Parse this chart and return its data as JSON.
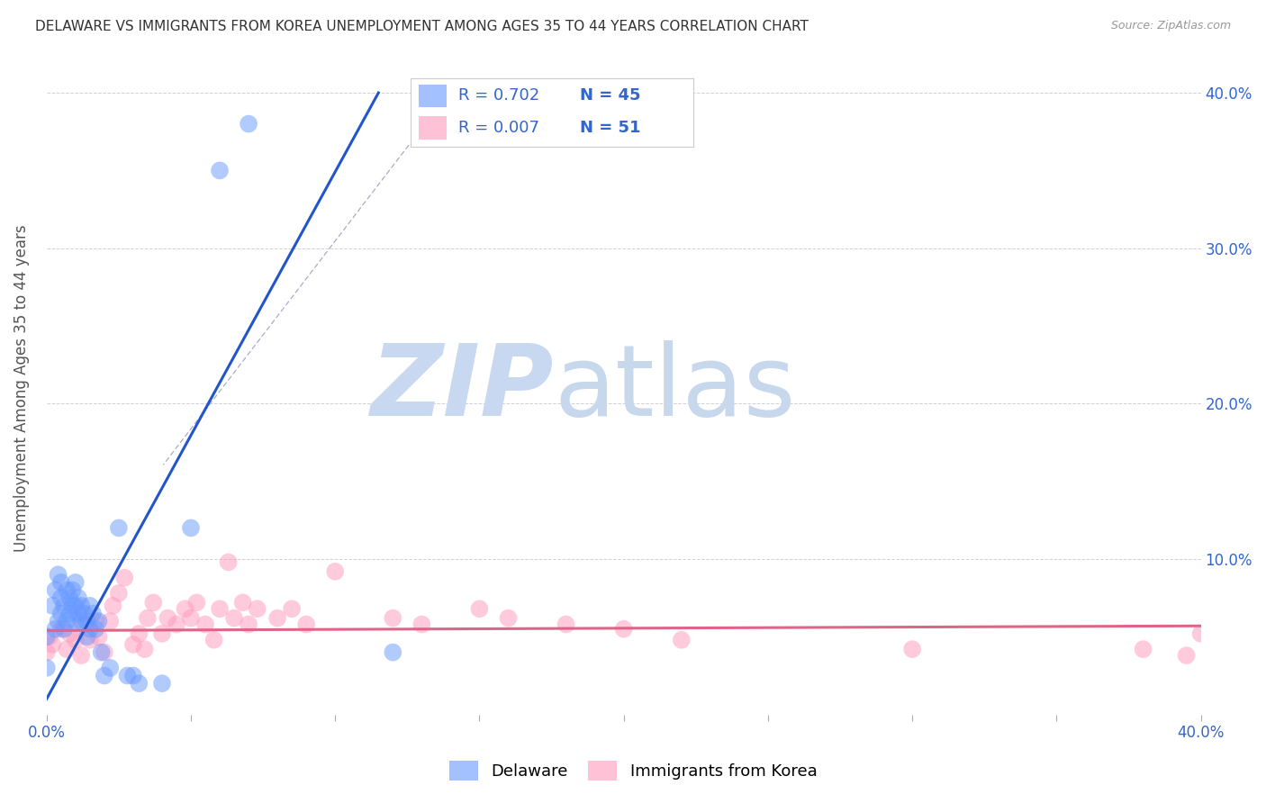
{
  "title": "DELAWARE VS IMMIGRANTS FROM KOREA UNEMPLOYMENT AMONG AGES 35 TO 44 YEARS CORRELATION CHART",
  "source": "Source: ZipAtlas.com",
  "ylabel": "Unemployment Among Ages 35 to 44 years",
  "xlim": [
    0.0,
    0.4
  ],
  "ylim": [
    0.0,
    0.42
  ],
  "xticks": [
    0.0,
    0.05,
    0.1,
    0.15,
    0.2,
    0.25,
    0.3,
    0.35,
    0.4
  ],
  "yticks": [
    0.0,
    0.1,
    0.2,
    0.3,
    0.4
  ],
  "xtick_labels": [
    "0.0%",
    "",
    "",
    "",
    "",
    "",
    "",
    "",
    "40.0%"
  ],
  "ytick_labels": [
    "",
    "10.0%",
    "20.0%",
    "30.0%",
    "40.0%"
  ],
  "legend_R_blue": "R = 0.702",
  "legend_N_blue": "N = 45",
  "legend_R_pink": "R = 0.007",
  "legend_N_pink": "N = 51",
  "legend_label_blue": "Delaware",
  "legend_label_pink": "Immigrants from Korea",
  "blue_color": "#6699ff",
  "pink_color": "#ff99bb",
  "line_blue_color": "#2255cc",
  "line_pink_color": "#dd6688",
  "text_color": "#3366cc",
  "blue_scatter_x": [
    0.0,
    0.0,
    0.002,
    0.003,
    0.003,
    0.004,
    0.004,
    0.005,
    0.005,
    0.005,
    0.006,
    0.006,
    0.007,
    0.007,
    0.008,
    0.008,
    0.009,
    0.009,
    0.01,
    0.01,
    0.01,
    0.011,
    0.011,
    0.012,
    0.012,
    0.013,
    0.014,
    0.014,
    0.015,
    0.015,
    0.016,
    0.017,
    0.018,
    0.019,
    0.02,
    0.022,
    0.025,
    0.028,
    0.03,
    0.032,
    0.04,
    0.05,
    0.06,
    0.07,
    0.12
  ],
  "blue_scatter_y": [
    0.05,
    0.03,
    0.07,
    0.055,
    0.08,
    0.06,
    0.09,
    0.065,
    0.075,
    0.085,
    0.055,
    0.07,
    0.06,
    0.08,
    0.065,
    0.075,
    0.07,
    0.08,
    0.06,
    0.07,
    0.085,
    0.065,
    0.075,
    0.06,
    0.07,
    0.065,
    0.05,
    0.06,
    0.055,
    0.07,
    0.065,
    0.055,
    0.06,
    0.04,
    0.025,
    0.03,
    0.12,
    0.025,
    0.025,
    0.02,
    0.02,
    0.12,
    0.35,
    0.38,
    0.04
  ],
  "pink_scatter_x": [
    0.0,
    0.001,
    0.002,
    0.005,
    0.007,
    0.008,
    0.01,
    0.012,
    0.013,
    0.015,
    0.017,
    0.018,
    0.02,
    0.022,
    0.023,
    0.025,
    0.027,
    0.03,
    0.032,
    0.034,
    0.035,
    0.037,
    0.04,
    0.042,
    0.045,
    0.048,
    0.05,
    0.052,
    0.055,
    0.058,
    0.06,
    0.063,
    0.065,
    0.068,
    0.07,
    0.073,
    0.08,
    0.085,
    0.09,
    0.1,
    0.12,
    0.13,
    0.15,
    0.16,
    0.18,
    0.2,
    0.22,
    0.3,
    0.38,
    0.395,
    0.4
  ],
  "pink_scatter_y": [
    0.04,
    0.05,
    0.045,
    0.055,
    0.042,
    0.052,
    0.048,
    0.038,
    0.058,
    0.048,
    0.06,
    0.05,
    0.04,
    0.06,
    0.07,
    0.078,
    0.088,
    0.045,
    0.052,
    0.042,
    0.062,
    0.072,
    0.052,
    0.062,
    0.058,
    0.068,
    0.062,
    0.072,
    0.058,
    0.048,
    0.068,
    0.098,
    0.062,
    0.072,
    0.058,
    0.068,
    0.062,
    0.068,
    0.058,
    0.092,
    0.062,
    0.058,
    0.068,
    0.062,
    0.058,
    0.055,
    0.048,
    0.042,
    0.042,
    0.038,
    0.052
  ],
  "blue_line_x": [
    0.0,
    0.115
  ],
  "blue_line_y": [
    0.01,
    0.4
  ],
  "pink_line_x": [
    0.0,
    0.4
  ],
  "pink_line_y": [
    0.054,
    0.057
  ],
  "dashed_line_x": [
    0.095,
    0.35
  ],
  "dashed_line_y": [
    0.385,
    0.875
  ],
  "watermark_zip": "ZIP",
  "watermark_atlas": "atlas",
  "zip_color": "#c8d8f0",
  "atlas_color": "#c8d8ec"
}
